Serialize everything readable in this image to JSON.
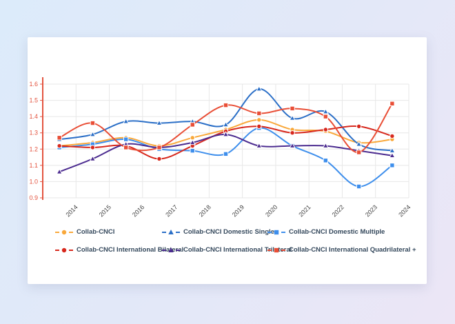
{
  "page": {
    "background_gradient_from": "#DCEBFA",
    "background_gradient_to": "#ECE6F6",
    "card_background": "#FFFFFF"
  },
  "chart_data": {
    "type": "line",
    "title": "",
    "xlabel": "",
    "ylabel": "",
    "grid": true,
    "smooth_lines": true,
    "legend_position": "bottom",
    "ylim": [
      0.9,
      1.6
    ],
    "y_tick_labels": [
      "0.9",
      "1.0",
      "1.1",
      "1.2",
      "1.3",
      "1.4",
      "1.5",
      "1.6"
    ],
    "categories": [
      "2014",
      "2015",
      "2016",
      "2017",
      "2018",
      "2019",
      "2020",
      "2021",
      "2022",
      "2023",
      "2024"
    ],
    "series": [
      {
        "name": "Collab-CNCI",
        "slug": "collab-cnci",
        "marker": "circle",
        "color": "#F9A83A",
        "values": [
          1.22,
          1.24,
          1.27,
          1.22,
          1.27,
          1.32,
          1.38,
          1.32,
          1.31,
          1.24,
          1.26
        ]
      },
      {
        "name": "Collab-CNCI Domestic Single",
        "slug": "domestic-single",
        "marker": "triangle",
        "color": "#2B6FC7",
        "values": [
          1.26,
          1.29,
          1.37,
          1.36,
          1.37,
          1.35,
          1.57,
          1.39,
          1.43,
          1.23,
          1.19
        ]
      },
      {
        "name": "Collab-CNCI Domestic Multiple",
        "slug": "domestic-multiple",
        "marker": "square",
        "color": "#3D8EEC",
        "values": [
          1.21,
          1.23,
          1.26,
          1.2,
          1.19,
          1.17,
          1.33,
          1.22,
          1.13,
          0.97,
          1.1
        ]
      },
      {
        "name": "Collab-CNCI International Bilateral",
        "slug": "international-bilateral",
        "marker": "circle",
        "color": "#D7281D",
        "values": [
          1.22,
          1.21,
          1.22,
          1.14,
          1.22,
          1.31,
          1.34,
          1.3,
          1.32,
          1.34,
          1.28
        ]
      },
      {
        "name": "Collab-CNCI International Trilateral",
        "slug": "international-trilateral",
        "marker": "triangle",
        "color": "#4B2B8F",
        "values": [
          1.06,
          1.14,
          1.23,
          1.21,
          1.24,
          1.29,
          1.22,
          1.22,
          1.22,
          1.19,
          1.16
        ]
      },
      {
        "name": "Collab-CNCI International Quadrilateral +",
        "slug": "international-quadrilateral",
        "marker": "square",
        "color": "#E94E36",
        "values": [
          1.27,
          1.36,
          1.21,
          1.21,
          1.35,
          1.47,
          1.42,
          1.45,
          1.4,
          1.18,
          1.48
        ]
      }
    ],
    "colors": {
      "y_axis": "#E3533F",
      "x_tick_label": "#3F3F3F",
      "gridline": "#E7E7E7",
      "legend_text": "#33475B"
    }
  }
}
